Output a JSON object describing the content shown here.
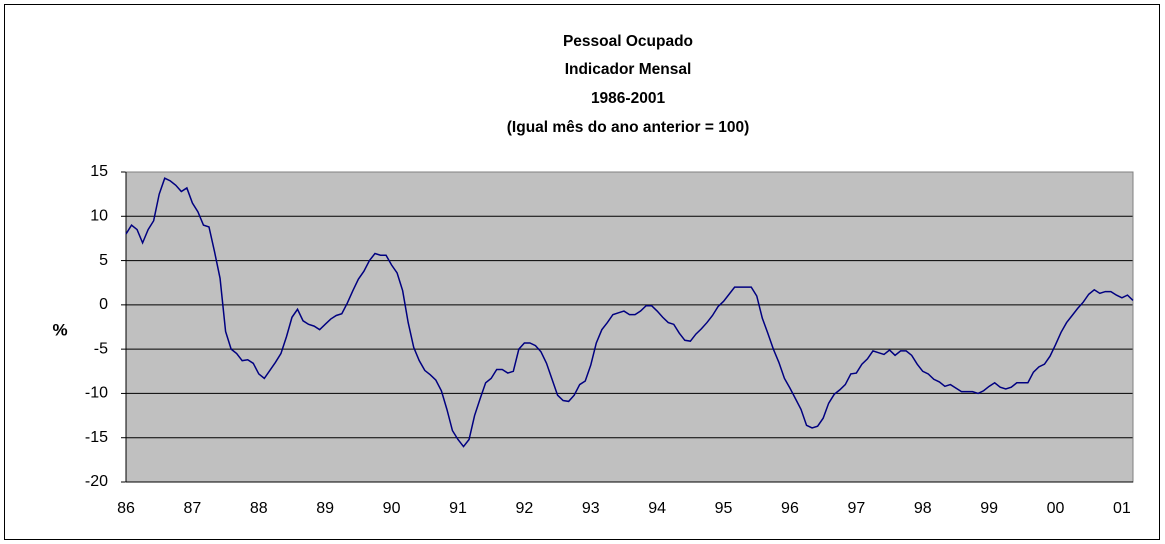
{
  "chart_data": {
    "type": "line",
    "title": [
      "Pessoal Ocupado",
      "Indicador Mensal",
      "1986-2001",
      "(Igual mês do ano anterior = 100)"
    ],
    "y_label": "%",
    "categories": [
      "86",
      null,
      null,
      null,
      null,
      null,
      null,
      null,
      null,
      null,
      null,
      null,
      "87",
      null,
      null,
      null,
      null,
      null,
      null,
      null,
      null,
      null,
      null,
      null,
      "88",
      null,
      null,
      null,
      null,
      null,
      null,
      null,
      null,
      null,
      null,
      null,
      "89",
      null,
      null,
      null,
      null,
      null,
      null,
      null,
      null,
      null,
      null,
      null,
      "90",
      null,
      null,
      null,
      null,
      null,
      null,
      null,
      null,
      null,
      null,
      null,
      "91",
      null,
      null,
      null,
      null,
      null,
      null,
      null,
      null,
      null,
      null,
      null,
      "92",
      null,
      null,
      null,
      null,
      null,
      null,
      null,
      null,
      null,
      null,
      null,
      "93",
      null,
      null,
      null,
      null,
      null,
      null,
      null,
      null,
      null,
      null,
      null,
      "94",
      null,
      null,
      null,
      null,
      null,
      null,
      null,
      null,
      null,
      null,
      null,
      "95",
      null,
      null,
      null,
      null,
      null,
      null,
      null,
      null,
      null,
      null,
      null,
      "96",
      null,
      null,
      null,
      null,
      null,
      null,
      null,
      null,
      null,
      null,
      null,
      "97",
      null,
      null,
      null,
      null,
      null,
      null,
      null,
      null,
      null,
      null,
      null,
      "98",
      null,
      null,
      null,
      null,
      null,
      null,
      null,
      null,
      null,
      null,
      null,
      "99",
      null,
      null,
      null,
      null,
      null,
      null,
      null,
      null,
      null,
      null,
      null,
      "00",
      null,
      null,
      null,
      null,
      null,
      null,
      null,
      null,
      null,
      null,
      null,
      "01",
      null,
      null
    ],
    "series": [
      {
        "color": "#000080",
        "values": [
          8,
          9,
          8.5,
          7,
          8.5,
          9.5,
          12.5,
          14.3,
          14,
          13.5,
          12.8,
          13.2,
          11.5,
          10.5,
          9,
          8.8,
          6,
          3,
          -3,
          -5,
          -5.5,
          -6.3,
          -6.2,
          -6.6,
          -7.8,
          -8.3,
          -7.4,
          -6.5,
          -5.5,
          -3.6,
          -1.4,
          -0.5,
          -1.8,
          -2.2,
          -2.4,
          -2.8,
          -2.2,
          -1.6,
          -1.2,
          -1,
          0.2,
          1.6,
          2.9,
          3.8,
          5,
          5.8,
          5.6,
          5.6,
          4.5,
          3.6,
          1.6,
          -2,
          -4.8,
          -6.3,
          -7.4,
          -7.9,
          -8.5,
          -9.7,
          -11.8,
          -14.2,
          -15.2,
          -16,
          -15.2,
          -12.5,
          -10.6,
          -8.8,
          -8.3,
          -7.3,
          -7.3,
          -7.7,
          -7.5,
          -5,
          -4.3,
          -4.3,
          -4.6,
          -5.3,
          -6.6,
          -8.4,
          -10.2,
          -10.8,
          -10.9,
          -10.2,
          -9,
          -8.6,
          -6.8,
          -4.3,
          -2.8,
          -2,
          -1.1,
          -0.9,
          -0.7,
          -1.1,
          -1.1,
          -0.7,
          -0.1,
          -0.1,
          -0.7,
          -1.4,
          -2,
          -2.2,
          -3.2,
          -4,
          -4.1,
          -3.3,
          -2.7,
          -2,
          -1.2,
          -0.2,
          0.4,
          1.2,
          2,
          2,
          2,
          2,
          1,
          -1.5,
          -3.2,
          -5,
          -6.5,
          -8.3,
          -9.4,
          -10.6,
          -11.8,
          -13.6,
          -13.9,
          -13.7,
          -12.8,
          -11.1,
          -10.1,
          -9.6,
          -9,
          -7.8,
          -7.7,
          -6.7,
          -6.1,
          -5.2,
          -5.4,
          -5.6,
          -5.1,
          -5.7,
          -5.2,
          -5.2,
          -5.7,
          -6.7,
          -7.5,
          -7.8,
          -8.4,
          -8.7,
          -9.2,
          -9,
          -9.4,
          -9.8,
          -9.8,
          -9.8,
          -10,
          -9.7,
          -9.2,
          -8.8,
          -9.3,
          -9.5,
          -9.3,
          -8.8,
          -8.8,
          -8.8,
          -7.6,
          -7,
          -6.7,
          -5.8,
          -4.5,
          -3.1,
          -2,
          -1.2,
          -0.4,
          0.3,
          1.2,
          1.7,
          1.3,
          1.5,
          1.5,
          1.1,
          0.8,
          1.1,
          0.5
        ]
      }
    ],
    "ylim": [
      -20,
      15
    ],
    "yticks": [
      -20,
      -15,
      -10,
      -5,
      0,
      5,
      10,
      15
    ],
    "grid": true
  }
}
